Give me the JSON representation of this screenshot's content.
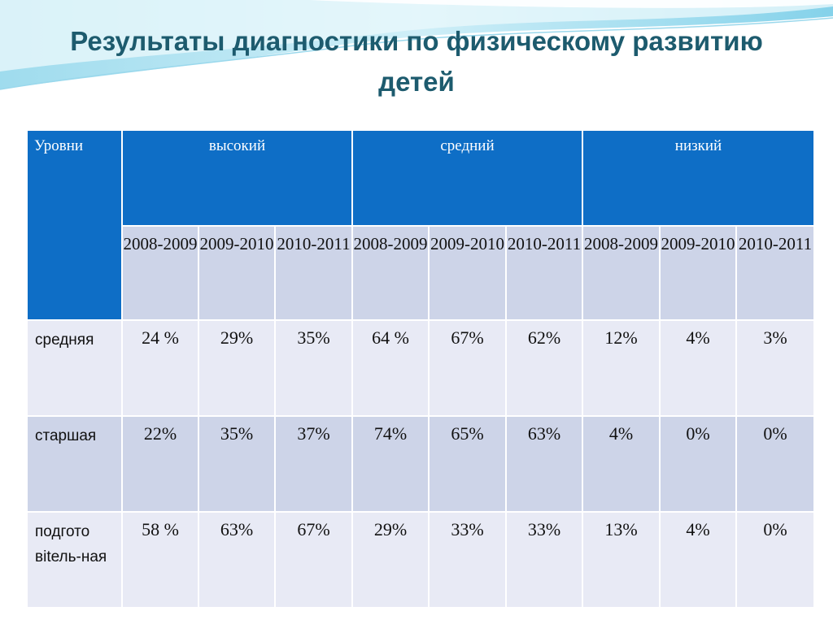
{
  "slide": {
    "title_line1": "Результаты диагностики по физическому развитию",
    "title_line2": "детей"
  },
  "table": {
    "corner": "Уровни",
    "groups": [
      "высокий",
      "средний",
      "низкий"
    ],
    "years": [
      "2008-2009",
      "2009-2010",
      "2010-2011"
    ],
    "rows": [
      {
        "label": "средняя",
        "values": [
          "24 %",
          "29%",
          "35%",
          "64 %",
          "67%",
          "62%",
          "12%",
          "4%",
          "3%"
        ]
      },
      {
        "label": "старшая",
        "values": [
          "22%",
          "35%",
          "37%",
          "74%",
          "65%",
          "63%",
          "4%",
          "0%",
          "0%"
        ]
      },
      {
        "label": "подгото вitель-ная",
        "values": [
          "58 %",
          "63%",
          "67%",
          "29%",
          "33%",
          "33%",
          "13%",
          "4%",
          "0%"
        ]
      }
    ]
  },
  "colors": {
    "header": "#0e6ec6",
    "title": "#1d5b6e",
    "row_light": "#e8eaf5",
    "row_dark": "#cdd4e8"
  }
}
